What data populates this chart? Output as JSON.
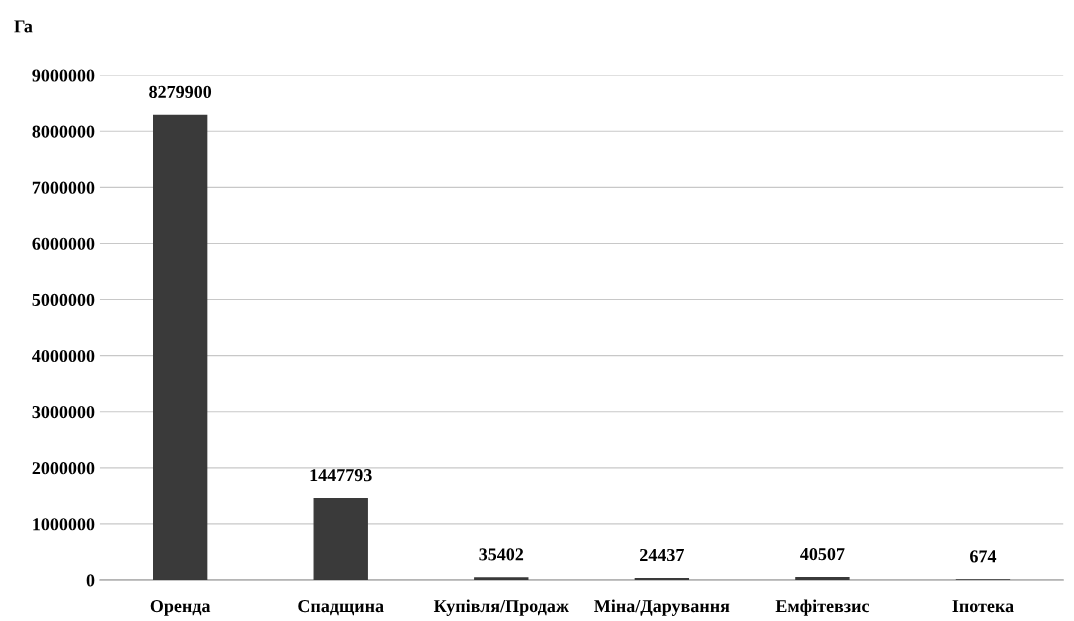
{
  "chart_data": {
    "type": "bar",
    "ylabel": "Га",
    "categories": [
      "Оренда",
      "Спадщина",
      "Купівля/Продаж",
      "Міна/Дарування",
      "Емфітевзис",
      "Іпотека"
    ],
    "values": [
      8279900,
      1447793,
      35402,
      24437,
      40507,
      674
    ],
    "color": "#3a3a3a",
    "ylim": [
      0,
      9000000
    ],
    "yticks": [
      0,
      1000000,
      2000000,
      3000000,
      4000000,
      5000000,
      6000000,
      7000000,
      8000000,
      9000000
    ],
    "grid": "y",
    "data_labels": true
  }
}
